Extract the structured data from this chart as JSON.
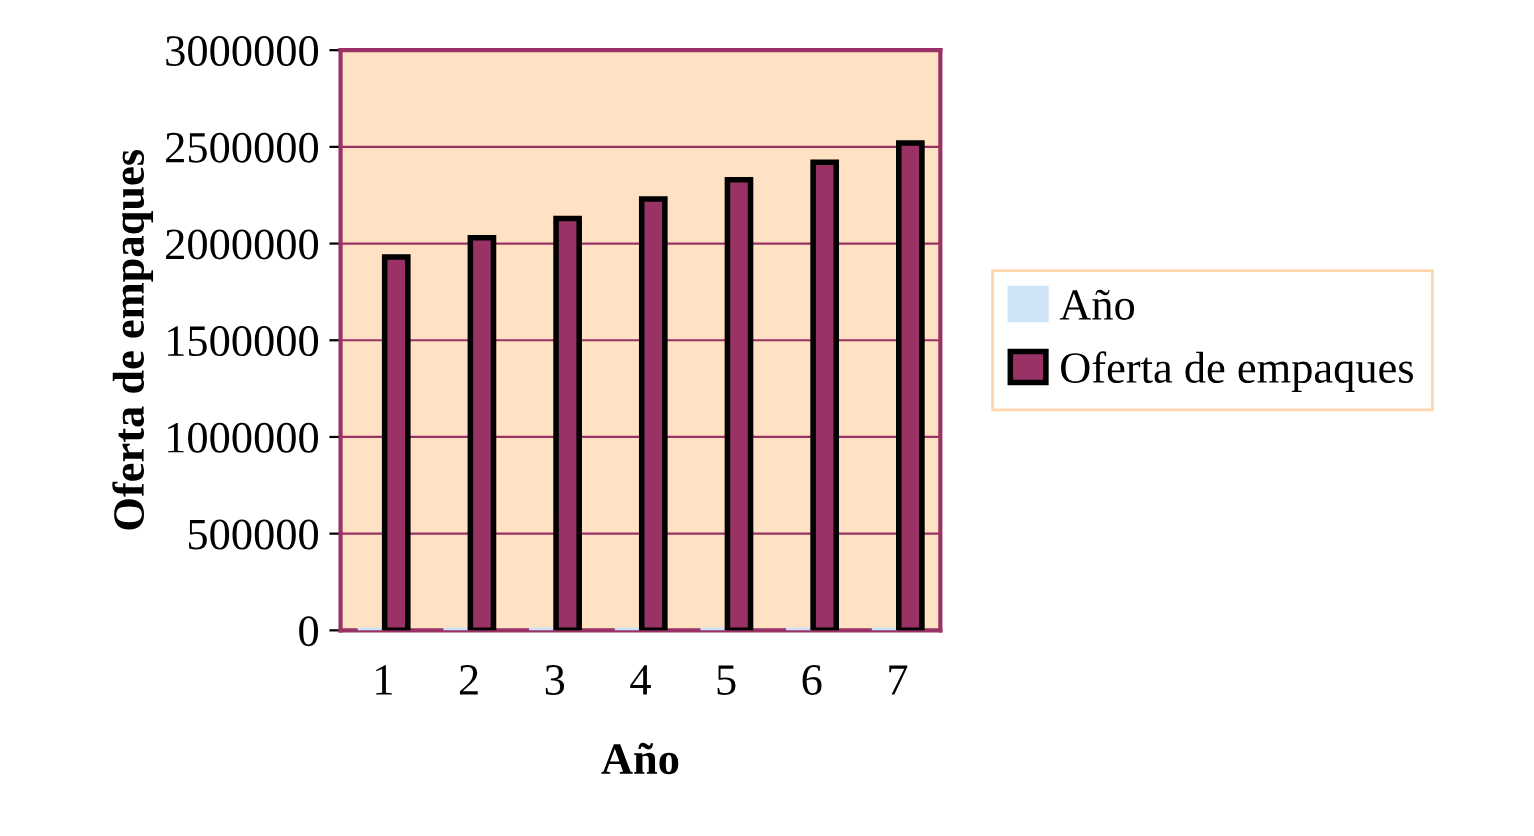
{
  "chart_data": {
    "type": "bar",
    "xlabel": "Año",
    "ylabel": "Oferta de empaques",
    "categories": [
      "1",
      "2",
      "3",
      "4",
      "5",
      "6",
      "7"
    ],
    "series": [
      {
        "name": "Año",
        "color": "#cfe3f7",
        "values": [
          0,
          0,
          0,
          0,
          0,
          0,
          0
        ]
      },
      {
        "name": "Oferta de empaques",
        "color": "#993366",
        "values": [
          1930000,
          2030000,
          2130000,
          2230000,
          2330000,
          2420000,
          2520000
        ]
      }
    ],
    "ylim": [
      0,
      3000000
    ],
    "yticks": [
      0,
      500000,
      1000000,
      1500000,
      2000000,
      2500000,
      3000000
    ],
    "grid": "y",
    "legend": "right"
  }
}
